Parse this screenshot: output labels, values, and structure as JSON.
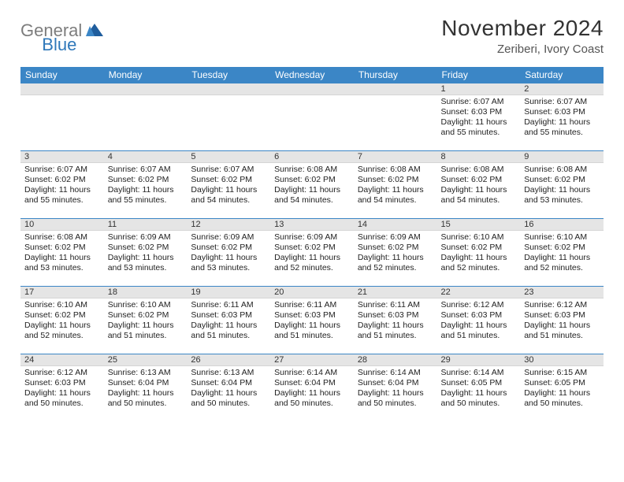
{
  "logo": {
    "text1": "General",
    "text2": "Blue"
  },
  "title": "November 2024",
  "location": "Zeriberi, Ivory Coast",
  "colors": {
    "header_bg": "#3b86c6",
    "header_text": "#ffffff",
    "daynum_bg": "#e5e5e5",
    "border": "#3b86c6",
    "logo_gray": "#7d7d7d",
    "logo_blue": "#2f78ba"
  },
  "weekdays": [
    "Sunday",
    "Monday",
    "Tuesday",
    "Wednesday",
    "Thursday",
    "Friday",
    "Saturday"
  ],
  "weeks": [
    [
      null,
      null,
      null,
      null,
      null,
      {
        "n": "1",
        "sr": "Sunrise: 6:07 AM",
        "ss": "Sunset: 6:03 PM",
        "d1": "Daylight: 11 hours",
        "d2": "and 55 minutes."
      },
      {
        "n": "2",
        "sr": "Sunrise: 6:07 AM",
        "ss": "Sunset: 6:03 PM",
        "d1": "Daylight: 11 hours",
        "d2": "and 55 minutes."
      }
    ],
    [
      {
        "n": "3",
        "sr": "Sunrise: 6:07 AM",
        "ss": "Sunset: 6:02 PM",
        "d1": "Daylight: 11 hours",
        "d2": "and 55 minutes."
      },
      {
        "n": "4",
        "sr": "Sunrise: 6:07 AM",
        "ss": "Sunset: 6:02 PM",
        "d1": "Daylight: 11 hours",
        "d2": "and 55 minutes."
      },
      {
        "n": "5",
        "sr": "Sunrise: 6:07 AM",
        "ss": "Sunset: 6:02 PM",
        "d1": "Daylight: 11 hours",
        "d2": "and 54 minutes."
      },
      {
        "n": "6",
        "sr": "Sunrise: 6:08 AM",
        "ss": "Sunset: 6:02 PM",
        "d1": "Daylight: 11 hours",
        "d2": "and 54 minutes."
      },
      {
        "n": "7",
        "sr": "Sunrise: 6:08 AM",
        "ss": "Sunset: 6:02 PM",
        "d1": "Daylight: 11 hours",
        "d2": "and 54 minutes."
      },
      {
        "n": "8",
        "sr": "Sunrise: 6:08 AM",
        "ss": "Sunset: 6:02 PM",
        "d1": "Daylight: 11 hours",
        "d2": "and 54 minutes."
      },
      {
        "n": "9",
        "sr": "Sunrise: 6:08 AM",
        "ss": "Sunset: 6:02 PM",
        "d1": "Daylight: 11 hours",
        "d2": "and 53 minutes."
      }
    ],
    [
      {
        "n": "10",
        "sr": "Sunrise: 6:08 AM",
        "ss": "Sunset: 6:02 PM",
        "d1": "Daylight: 11 hours",
        "d2": "and 53 minutes."
      },
      {
        "n": "11",
        "sr": "Sunrise: 6:09 AM",
        "ss": "Sunset: 6:02 PM",
        "d1": "Daylight: 11 hours",
        "d2": "and 53 minutes."
      },
      {
        "n": "12",
        "sr": "Sunrise: 6:09 AM",
        "ss": "Sunset: 6:02 PM",
        "d1": "Daylight: 11 hours",
        "d2": "and 53 minutes."
      },
      {
        "n": "13",
        "sr": "Sunrise: 6:09 AM",
        "ss": "Sunset: 6:02 PM",
        "d1": "Daylight: 11 hours",
        "d2": "and 52 minutes."
      },
      {
        "n": "14",
        "sr": "Sunrise: 6:09 AM",
        "ss": "Sunset: 6:02 PM",
        "d1": "Daylight: 11 hours",
        "d2": "and 52 minutes."
      },
      {
        "n": "15",
        "sr": "Sunrise: 6:10 AM",
        "ss": "Sunset: 6:02 PM",
        "d1": "Daylight: 11 hours",
        "d2": "and 52 minutes."
      },
      {
        "n": "16",
        "sr": "Sunrise: 6:10 AM",
        "ss": "Sunset: 6:02 PM",
        "d1": "Daylight: 11 hours",
        "d2": "and 52 minutes."
      }
    ],
    [
      {
        "n": "17",
        "sr": "Sunrise: 6:10 AM",
        "ss": "Sunset: 6:02 PM",
        "d1": "Daylight: 11 hours",
        "d2": "and 52 minutes."
      },
      {
        "n": "18",
        "sr": "Sunrise: 6:10 AM",
        "ss": "Sunset: 6:02 PM",
        "d1": "Daylight: 11 hours",
        "d2": "and 51 minutes."
      },
      {
        "n": "19",
        "sr": "Sunrise: 6:11 AM",
        "ss": "Sunset: 6:03 PM",
        "d1": "Daylight: 11 hours",
        "d2": "and 51 minutes."
      },
      {
        "n": "20",
        "sr": "Sunrise: 6:11 AM",
        "ss": "Sunset: 6:03 PM",
        "d1": "Daylight: 11 hours",
        "d2": "and 51 minutes."
      },
      {
        "n": "21",
        "sr": "Sunrise: 6:11 AM",
        "ss": "Sunset: 6:03 PM",
        "d1": "Daylight: 11 hours",
        "d2": "and 51 minutes."
      },
      {
        "n": "22",
        "sr": "Sunrise: 6:12 AM",
        "ss": "Sunset: 6:03 PM",
        "d1": "Daylight: 11 hours",
        "d2": "and 51 minutes."
      },
      {
        "n": "23",
        "sr": "Sunrise: 6:12 AM",
        "ss": "Sunset: 6:03 PM",
        "d1": "Daylight: 11 hours",
        "d2": "and 51 minutes."
      }
    ],
    [
      {
        "n": "24",
        "sr": "Sunrise: 6:12 AM",
        "ss": "Sunset: 6:03 PM",
        "d1": "Daylight: 11 hours",
        "d2": "and 50 minutes."
      },
      {
        "n": "25",
        "sr": "Sunrise: 6:13 AM",
        "ss": "Sunset: 6:04 PM",
        "d1": "Daylight: 11 hours",
        "d2": "and 50 minutes."
      },
      {
        "n": "26",
        "sr": "Sunrise: 6:13 AM",
        "ss": "Sunset: 6:04 PM",
        "d1": "Daylight: 11 hours",
        "d2": "and 50 minutes."
      },
      {
        "n": "27",
        "sr": "Sunrise: 6:14 AM",
        "ss": "Sunset: 6:04 PM",
        "d1": "Daylight: 11 hours",
        "d2": "and 50 minutes."
      },
      {
        "n": "28",
        "sr": "Sunrise: 6:14 AM",
        "ss": "Sunset: 6:04 PM",
        "d1": "Daylight: 11 hours",
        "d2": "and 50 minutes."
      },
      {
        "n": "29",
        "sr": "Sunrise: 6:14 AM",
        "ss": "Sunset: 6:05 PM",
        "d1": "Daylight: 11 hours",
        "d2": "and 50 minutes."
      },
      {
        "n": "30",
        "sr": "Sunrise: 6:15 AM",
        "ss": "Sunset: 6:05 PM",
        "d1": "Daylight: 11 hours",
        "d2": "and 50 minutes."
      }
    ]
  ]
}
